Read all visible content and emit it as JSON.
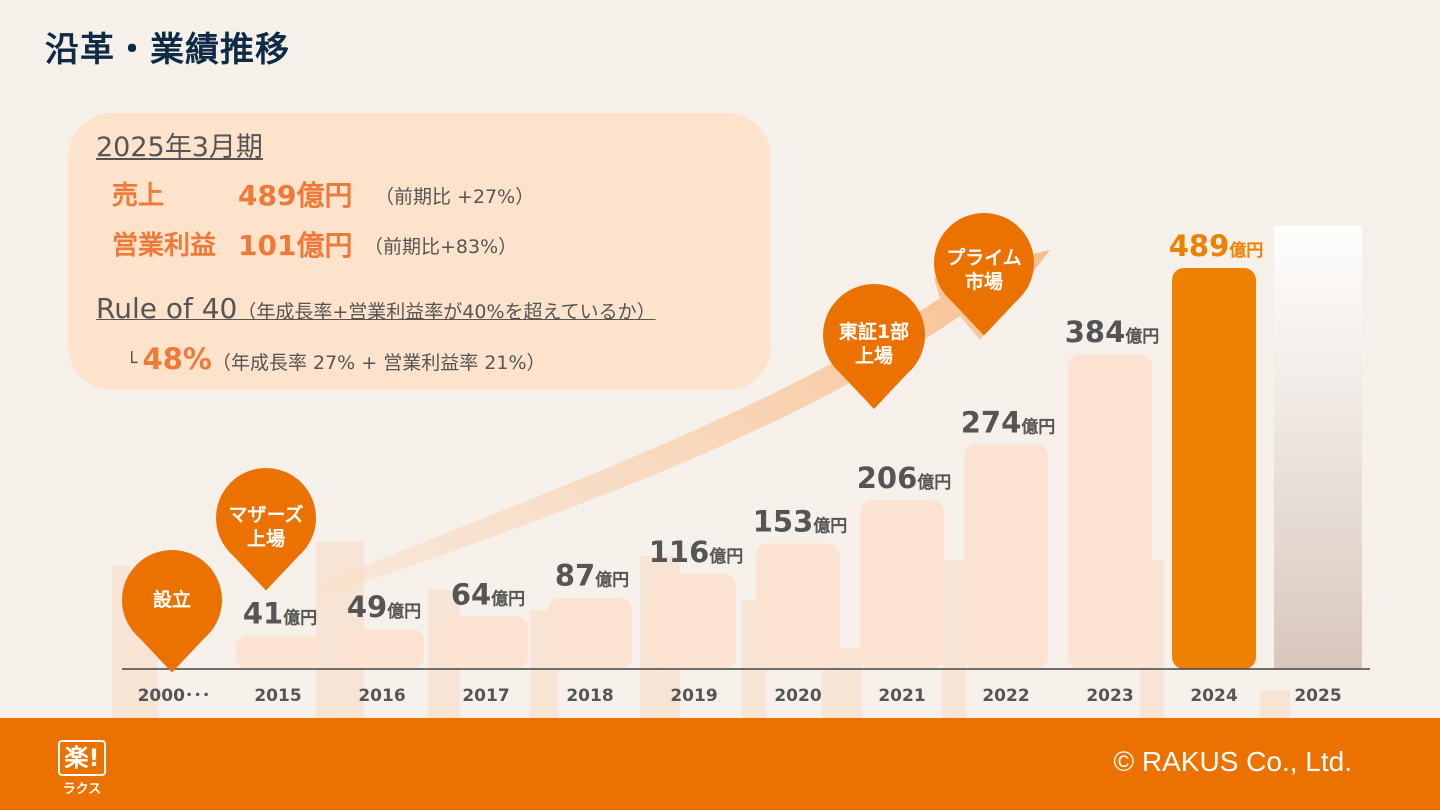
{
  "header": {
    "title": "沿革・業績推移"
  },
  "summary": {
    "period": "2025年3月期",
    "sales_label": "売上",
    "sales_value": "489億円",
    "sales_note": "（前期比 +27%）",
    "profit_label": "営業利益",
    "profit_value": "101億円",
    "profit_note": "（前期比+83%）",
    "rule_title": "Rule of 40",
    "rule_desc": "（年成長率+営業利益率が40%を超えているか）",
    "rule_mark": "└",
    "rule_value": "48%",
    "rule_detail": "（年成長率 27% + 営業利益率 21%）"
  },
  "milestones": {
    "founding": "設立",
    "mothers": [
      "マザーズ",
      "上場"
    ],
    "tse1": [
      "東証1部",
      "上場"
    ],
    "prime": [
      "プライム",
      "市場"
    ]
  },
  "colors": {
    "accent": "#eb7200",
    "bar_light": "#fbe2d1",
    "bar_highlight": "#ee8100",
    "text_dark": "#0f2a44",
    "label_gray": "#555555"
  },
  "chart_data": {
    "type": "bar",
    "unit": "億円",
    "categories": [
      "2000･･･",
      "2015",
      "2016",
      "2017",
      "2018",
      "2019",
      "2020",
      "2021",
      "2022",
      "2023",
      "2024",
      "2025"
    ],
    "values": [
      null,
      41,
      49,
      64,
      87,
      116,
      153,
      206,
      274,
      384,
      489,
      null
    ],
    "value_labels": [
      "",
      "41",
      "49",
      "64",
      "87",
      "116",
      "153",
      "206",
      "274",
      "384",
      "489",
      ""
    ],
    "highlight_category": "2024",
    "ylim": [
      0,
      500
    ]
  },
  "footer": {
    "logo_mark": "楽!",
    "logo_kana": "ラクス",
    "copyright": "© RAKUS Co., Ltd."
  }
}
